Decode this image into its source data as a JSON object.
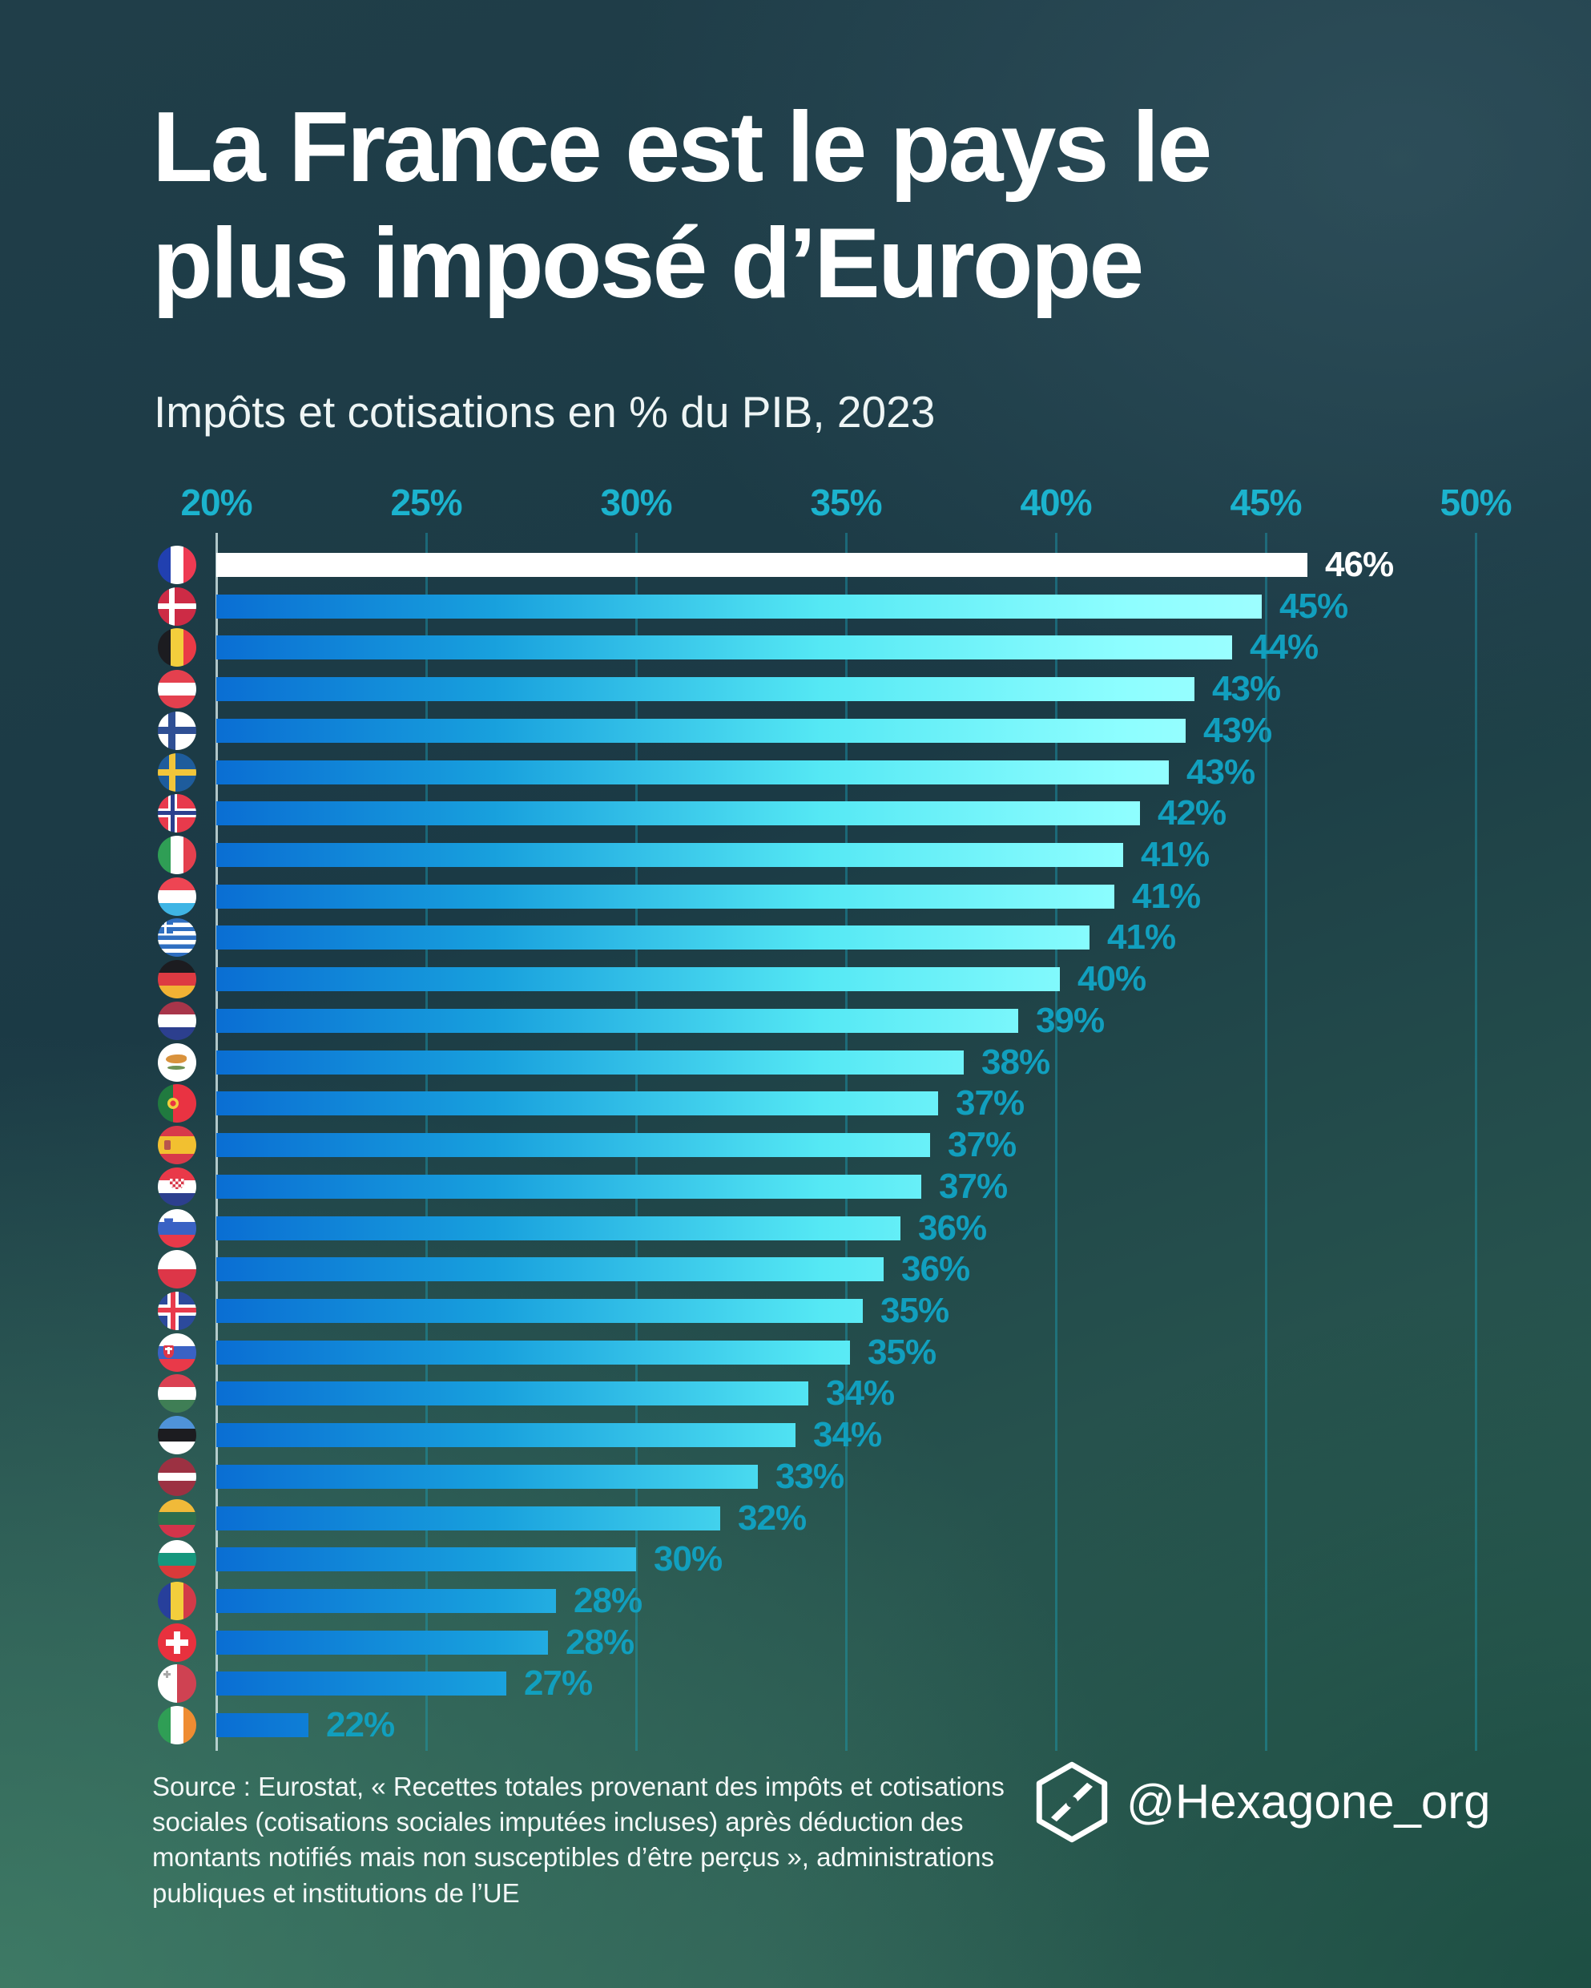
{
  "header": {
    "title": "La France est le pays le\nplus imposé d’Europe",
    "subtitle": "Impôts et cotisations en % du PIB, 2023"
  },
  "axis": {
    "ticks": [
      "20%",
      "25%",
      "30%",
      "35%",
      "40%",
      "45%",
      "50%"
    ],
    "min": 20,
    "max": 50
  },
  "chart_data": {
    "type": "bar",
    "orientation": "horizontal",
    "title": "La France est le pays le plus imposé d’Europe",
    "subtitle": "Impôts et cotisations en % du PIB, 2023",
    "xlim": [
      20,
      50
    ],
    "grid": true,
    "highlight": "France",
    "colors": {
      "bar_gradient_left": "#0a6ed3",
      "bar_gradient_right": "#b5ffff",
      "highlight_bar": "#ffffff",
      "value_label": "#119fbe",
      "axis_label": "#1bb3ce"
    },
    "rows": [
      {
        "id": "france",
        "country": "France",
        "value": 46,
        "label": "46%",
        "len": 46.0,
        "highlight": true,
        "flag": {
          "bg": [
            "linear-gradient(90deg,#2140b0 0 33.4%,#ffffff 33.4% 66.6%,#ee3a52 66.6%)"
          ]
        }
      },
      {
        "id": "danemark",
        "country": "Danemark",
        "value": 45,
        "label": "45%",
        "len": 44.9,
        "flag": {
          "bg": [
            "linear-gradient(#fff,#fff) 14px 0/7px 100% no-repeat",
            "linear-gradient(#fff,#fff) 0 20px/100% 7px no-repeat",
            "#cd2b45"
          ]
        }
      },
      {
        "id": "belgique",
        "country": "Belgique",
        "value": 44,
        "label": "44%",
        "len": 44.2,
        "flag": {
          "bg": [
            "linear-gradient(90deg,#1c1c20 0 33.4%,#f3ce3c 33.4% 66.6%,#ea3a46 66.6%)"
          ]
        }
      },
      {
        "id": "autriche",
        "country": "Autriche",
        "value": 43,
        "label": "43%",
        "len": 43.3,
        "flag": {
          "bg": [
            "linear-gradient(180deg,#e4404e 0 33.4%,#ffffff 33.4% 66.6%,#e4404e 66.6%)"
          ]
        }
      },
      {
        "id": "finlande",
        "country": "Finlande",
        "value": 43,
        "label": "43%",
        "len": 43.1,
        "flag": {
          "bg": [
            "linear-gradient(#2f4f94,#2f4f94) 13px 0/9px 100% no-repeat",
            "linear-gradient(#2f4f94,#2f4f94) 0 19px/100% 9px no-repeat",
            "#ffffff"
          ]
        }
      },
      {
        "id": "suede",
        "country": "Suède",
        "value": 43,
        "label": "43%",
        "len": 42.7,
        "flag": {
          "bg": [
            "linear-gradient(#f2c53a,#f2c53a) 14px 0/8px 100% no-repeat",
            "linear-gradient(#f2c53a,#f2c53a) 0 20px/100% 8px no-repeat",
            "#1e5c9c"
          ]
        }
      },
      {
        "id": "norvege",
        "country": "Norvège",
        "value": 42,
        "label": "42%",
        "len": 42.0,
        "flag": {
          "bg": [
            "linear-gradient(#2b3f8f,#2b3f8f) 16px 0/5px 100% no-repeat",
            "linear-gradient(#2b3f8f,#2b3f8f) 0 21px/100% 5px no-repeat",
            "linear-gradient(#fff,#fff) 13px 0/11px 100% no-repeat",
            "linear-gradient(#fff,#fff) 0 18px/100% 11px no-repeat",
            "#e83a4c"
          ]
        }
      },
      {
        "id": "italie",
        "country": "Italie",
        "value": 41,
        "label": "41%",
        "len": 41.6,
        "flag": {
          "bg": [
            "linear-gradient(90deg,#2f9e55 0 33.4%,#ffffff 33.4% 66.6%,#e4404e 66.6%)"
          ]
        }
      },
      {
        "id": "luxembourg",
        "country": "Luxembourg",
        "value": 41,
        "label": "41%",
        "len": 41.4,
        "flag": {
          "bg": [
            "linear-gradient(180deg,#ee4553 0 33.4%,#ffffff 33.4% 66.6%,#3fb5e5 66.6%)"
          ]
        }
      },
      {
        "id": "grece",
        "country": "Grèce",
        "value": 41,
        "label": "41%",
        "len": 40.8,
        "flag": {
          "bg": [
            "linear-gradient(#fff,#fff) 8px 0/3px 19px no-repeat",
            "linear-gradient(#fff,#fff) 0 8px/19px 3px no-repeat",
            "linear-gradient(#2f6fc1,#2f6fc1) 0 0/19px 19px no-repeat",
            "repeating-linear-gradient(180deg,#2f6fc1 0 5.4px,#ffffff 5.4px 10.8px)"
          ]
        }
      },
      {
        "id": "allemagne",
        "country": "Allemagne",
        "value": 40,
        "label": "40%",
        "len": 40.1,
        "flag": {
          "bg": [
            "linear-gradient(180deg,#1c1c20 0 33.4%,#dd3a42 33.4% 66.6%,#f2b234 66.6%)"
          ]
        }
      },
      {
        "id": "pays-bas",
        "country": "Pays-Bas",
        "value": 39,
        "label": "39%",
        "len": 39.1,
        "flag": {
          "bg": [
            "linear-gradient(180deg,#a8354a 0 33.4%,#ffffff 33.4% 66.6%,#2c3f8e 66.6%)"
          ]
        }
      },
      {
        "id": "chypre",
        "country": "Chypre",
        "value": 38,
        "label": "38%",
        "len": 37.8,
        "flag": {
          "bg": [
            "#ffffff"
          ],
          "marks": [
            {
              "l": 10,
              "t": 14,
              "w": 26,
              "h": 11,
              "bg": "#d9923c",
              "br": "60% 40% 50% 50%"
            },
            {
              "l": 12,
              "t": 28,
              "w": 22,
              "h": 5,
              "bg": "#6f9355",
              "br": "50%"
            }
          ]
        }
      },
      {
        "id": "portugal",
        "country": "Portugal",
        "value": 37,
        "label": "37%",
        "len": 37.2,
        "flag": {
          "bg": [
            "linear-gradient(90deg,#207a3f 0 40%,#e93342 40%)"
          ],
          "marks": [
            {
              "l": 12,
              "t": 17,
              "w": 14,
              "h": 14,
              "bg": "radial-gradient(#e93342 35%,#f3ce3c 36%)",
              "br": "50%"
            }
          ]
        }
      },
      {
        "id": "espagne",
        "country": "Espagne",
        "value": 37,
        "label": "37%",
        "len": 37.0,
        "flag": {
          "bg": [
            "linear-gradient(180deg,#d8394a 0 27%,#f2c030 27% 73%,#d8394a 73%)"
          ],
          "marks": [
            {
              "l": 8,
              "t": 18,
              "w": 8,
              "h": 12,
              "bg": "#b9544c",
              "br": "2px"
            }
          ]
        }
      },
      {
        "id": "croatie",
        "country": "Croatie",
        "value": 37,
        "label": "37%",
        "len": 36.8,
        "flag": {
          "bg": [
            "linear-gradient(180deg,#e93949 0 33.4%,#ffffff 33.4% 66.6%,#2c3f8e 66.6%)"
          ],
          "marks": [
            {
              "l": 15,
              "t": 14,
              "w": 18,
              "h": 13,
              "bg": "repeating-conic-gradient(#d8394a 0 25%,#ffffff 0 50%) 0 0/7px 7px",
              "br": "0 0 50% 50%"
            }
          ]
        }
      },
      {
        "id": "slovenie",
        "country": "Slovénie",
        "value": 36,
        "label": "36%",
        "len": 36.3,
        "flag": {
          "bg": [
            "linear-gradient(180deg,#ffffff 0 33.4%,#3a62c4 33.4% 66.6%,#e93949 66.6%)"
          ],
          "marks": [
            {
              "l": 8,
              "t": 7,
              "w": 11,
              "h": 13,
              "bg": "linear-gradient(180deg,#ffffff 35%,#3a62c4 35%)",
              "br": "2px 2px 50% 50%"
            }
          ]
        }
      },
      {
        "id": "pologne",
        "country": "Pologne",
        "value": 36,
        "label": "36%",
        "len": 35.9,
        "flag": {
          "bg": [
            "linear-gradient(180deg,#ffffff 0 50%,#dd3648 50%)"
          ]
        }
      },
      {
        "id": "islande",
        "country": "Islande",
        "value": 35,
        "label": "35%",
        "len": 35.4,
        "flag": {
          "bg": [
            "linear-gradient(#e83a4c,#e83a4c) 16px 0/6px 100% no-repeat",
            "linear-gradient(#e83a4c,#e83a4c) 0 20px/100% 6px no-repeat",
            "linear-gradient(#fff,#fff) 12px 0/14px 100% no-repeat",
            "linear-gradient(#fff,#fff) 0 16px/100% 14px no-repeat",
            "#2c4a9c"
          ]
        }
      },
      {
        "id": "slovaquie",
        "country": "Slovaquie",
        "value": 35,
        "label": "35%",
        "len": 35.1,
        "flag": {
          "bg": [
            "linear-gradient(180deg,#ffffff 0 33.4%,#3a62c4 33.4% 66.6%,#e93949 66.6%)"
          ],
          "marks": [
            {
              "l": 7,
              "t": 15,
              "w": 13,
              "h": 16,
              "bg": "linear-gradient(#fff,#fff) 50% 30%/3px 9px no-repeat, linear-gradient(#fff,#fff) 50% 28%/9px 3px no-repeat, #dd3648",
              "br": "2px 2px 50% 50%"
            }
          ]
        }
      },
      {
        "id": "hongrie",
        "country": "Hongrie",
        "value": 34,
        "label": "34%",
        "len": 34.1,
        "flag": {
          "bg": [
            "linear-gradient(180deg,#da4152 0 33.4%,#ffffff 33.4% 66.6%,#3f7e55 66.6%)"
          ]
        }
      },
      {
        "id": "estonie",
        "country": "Estonie",
        "value": 34,
        "label": "34%",
        "len": 33.8,
        "flag": {
          "bg": [
            "linear-gradient(180deg,#4f93d9 0 33.4%,#1c1c20 33.4% 66.6%,#ffffff 66.6%)"
          ]
        }
      },
      {
        "id": "lettonie",
        "country": "Lettonie",
        "value": 33,
        "label": "33%",
        "len": 32.9,
        "flag": {
          "bg": [
            "linear-gradient(180deg,#9c3142 0 40%,#ffffff 40% 60%,#9c3142 60%)"
          ]
        }
      },
      {
        "id": "lituanie",
        "country": "Lituanie",
        "value": 32,
        "label": "32%",
        "len": 32.0,
        "flag": {
          "bg": [
            "linear-gradient(180deg,#f0ba39 0 33.4%,#2d6e4e 33.4% 66.6%,#d2344a 66.6%)"
          ]
        }
      },
      {
        "id": "bulgarie",
        "country": "Bulgarie",
        "value": 30,
        "label": "30%",
        "len": 30.0,
        "flag": {
          "bg": [
            "linear-gradient(180deg,#ffffff 0 33.4%,#16977e 33.4% 66.6%,#da3a3a 66.6%)"
          ]
        }
      },
      {
        "id": "roumanie",
        "country": "Roumanie",
        "value": 28,
        "label": "28%",
        "len": 28.1,
        "flag": {
          "bg": [
            "linear-gradient(90deg,#273f9b 0 33.4%,#f3ce3c 33.4% 66.6%,#d23a48 66.6%)"
          ]
        }
      },
      {
        "id": "suisse",
        "country": "Suisse",
        "value": 28,
        "label": "28%",
        "len": 27.9,
        "flag": {
          "bg": [
            "linear-gradient(#fff,#fff) 20px 10px/8px 28px no-repeat",
            "linear-gradient(#fff,#fff) 10px 20px/28px 8px no-repeat",
            "#e8313e"
          ]
        }
      },
      {
        "id": "malte",
        "country": "Malte",
        "value": 27,
        "label": "27%",
        "len": 26.9,
        "flag": {
          "bg": [
            "linear-gradient(90deg,#ffffff 0 50%,#cf4252 50%)"
          ],
          "marks": [
            {
              "l": 7,
              "t": 8,
              "w": 9,
              "h": 9,
              "bg": "linear-gradient(#a9a9a9,#a9a9a9) 50% 0/3px 100% no-repeat, linear-gradient(#a9a9a9,#a9a9a9) 0 50%/100% 3px no-repeat"
            }
          ]
        }
      },
      {
        "id": "irlande",
        "country": "Irlande",
        "value": 22,
        "label": "22%",
        "len": 22.2,
        "flag": {
          "bg": [
            "linear-gradient(90deg,#2f9e55 0 33.4%,#ffffff 33.4% 66.6%,#ef8c32 66.6%)"
          ]
        }
      }
    ]
  },
  "footer": {
    "source": "Source : Eurostat, « Recettes totales provenant des impôts et cotisations\nsociales (cotisations sociales imputées incluses) après déduction des\nmontants notifiés mais non susceptibles d’être perçus », administrations\npubliques et institutions de l’UE",
    "handle": "@Hexagone_org"
  }
}
